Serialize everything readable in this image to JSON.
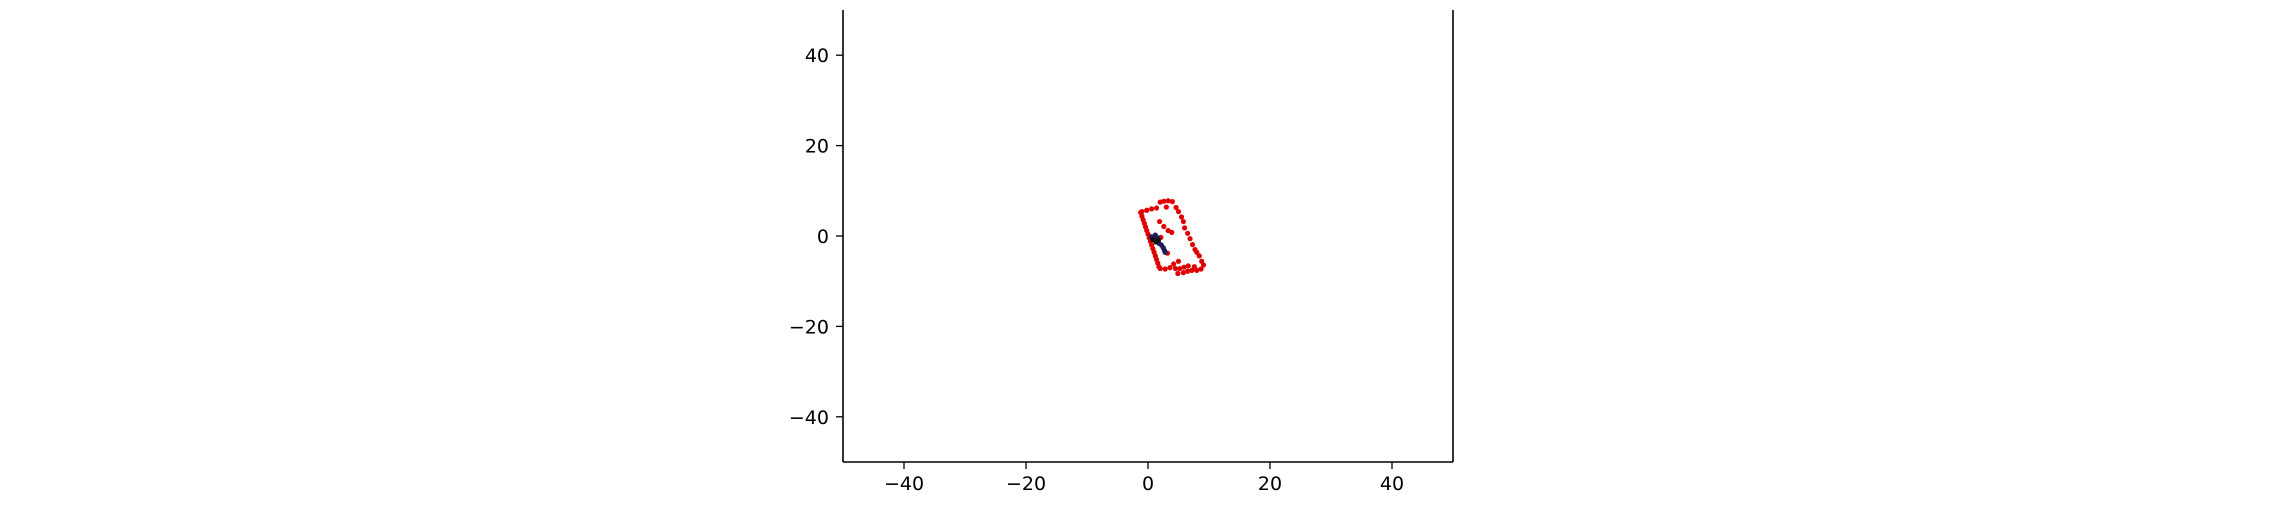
{
  "chart_data": {
    "type": "scatter",
    "title": "",
    "xlabel": "",
    "ylabel": "",
    "xlim": [
      -50,
      50
    ],
    "ylim": [
      -50,
      50
    ],
    "xticks": [
      -40,
      -20,
      0,
      20,
      40
    ],
    "yticks": [
      -40,
      -20,
      0,
      20,
      40
    ],
    "xtick_labels": [
      "−40",
      "−20",
      "0",
      "20",
      "40"
    ],
    "ytick_labels": [
      "−40",
      "−20",
      "0",
      "20",
      "40"
    ],
    "grid": false,
    "spines": [
      "left",
      "bottom",
      "right"
    ],
    "series": [
      {
        "color": "#e00000",
        "points": [
          [
            -1.2,
            5.2
          ],
          [
            -1.0,
            4.4
          ],
          [
            -0.8,
            3.6
          ],
          [
            -0.6,
            2.8
          ],
          [
            -0.4,
            2.0
          ],
          [
            -0.2,
            1.2
          ],
          [
            0.0,
            0.4
          ],
          [
            0.2,
            -0.4
          ],
          [
            0.4,
            -1.2
          ],
          [
            0.6,
            -2.0
          ],
          [
            0.8,
            -2.8
          ],
          [
            1.0,
            -3.6
          ],
          [
            1.2,
            -4.4
          ],
          [
            1.4,
            -5.2
          ],
          [
            1.6,
            -6.0
          ],
          [
            1.8,
            -6.8
          ],
          [
            2.0,
            -7.2
          ],
          [
            2.8,
            -7.3
          ],
          [
            3.6,
            -7.0
          ],
          [
            -1.0,
            5.4
          ],
          [
            -0.2,
            5.7
          ],
          [
            0.6,
            6.0
          ],
          [
            1.4,
            6.2
          ],
          [
            2.0,
            7.5
          ],
          [
            2.6,
            7.7
          ],
          [
            3.3,
            7.8
          ],
          [
            4.0,
            7.6
          ],
          [
            3.0,
            6.4
          ],
          [
            4.6,
            6.3
          ],
          [
            5.0,
            5.4
          ],
          [
            5.5,
            4.2
          ],
          [
            5.8,
            3.2
          ],
          [
            6.0,
            1.8
          ],
          [
            6.5,
            0.6
          ],
          [
            6.9,
            -0.6
          ],
          [
            7.3,
            -1.9
          ],
          [
            7.7,
            -3.0
          ],
          [
            8.0,
            -3.6
          ],
          [
            8.4,
            -4.4
          ],
          [
            8.8,
            -5.6
          ],
          [
            9.1,
            -6.4
          ],
          [
            8.7,
            -7.3
          ],
          [
            8.0,
            -7.6
          ],
          [
            7.2,
            -7.6
          ],
          [
            6.5,
            -7.8
          ],
          [
            5.8,
            -8.1
          ],
          [
            4.9,
            -8.3
          ],
          [
            7.6,
            -6.8
          ],
          [
            6.6,
            -6.6
          ],
          [
            5.9,
            -6.9
          ],
          [
            5.2,
            -7.2
          ],
          [
            4.5,
            -7.2
          ],
          [
            1.9,
            3.2
          ],
          [
            2.6,
            2.1
          ],
          [
            3.3,
            1.2
          ],
          [
            2.1,
            -0.3
          ],
          [
            3.9,
            0.8
          ],
          [
            3.2,
            -3.8
          ],
          [
            5.0,
            -5.6
          ],
          [
            4.2,
            -6.2
          ]
        ]
      },
      {
        "color": "#1a1f5c",
        "points": [
          [
            0.6,
            -0.2
          ],
          [
            1.0,
            -0.8
          ],
          [
            1.4,
            -1.2
          ],
          [
            1.8,
            -1.6
          ],
          [
            2.2,
            -2.0
          ],
          [
            2.5,
            -2.6
          ],
          [
            2.7,
            -3.2
          ],
          [
            2.8,
            -3.6
          ],
          [
            1.2,
            0.2
          ],
          [
            1.6,
            -0.4
          ]
        ]
      },
      {
        "color": "#111111",
        "points": [
          [
            0.8,
            -0.8
          ],
          [
            1.3,
            -1.3
          ],
          [
            1.7,
            -0.9
          ]
        ]
      }
    ]
  }
}
